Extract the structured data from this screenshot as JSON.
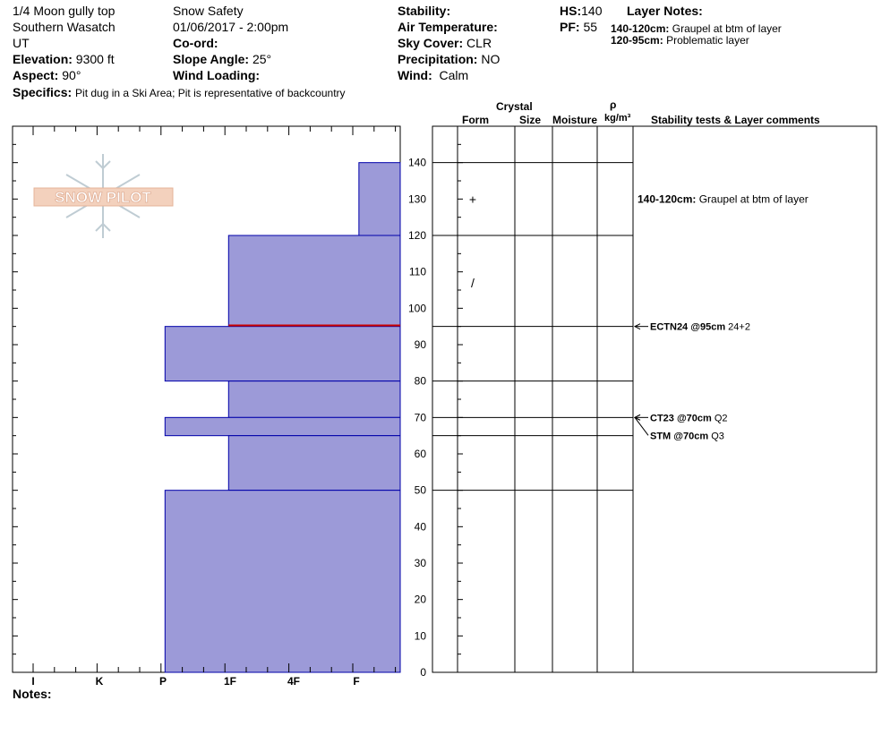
{
  "header": {
    "location": "1/4 Moon gully top",
    "range": "Southern Wasatch",
    "state": "UT",
    "elevation_label": "Elevation:",
    "elevation_value": "9300 ft",
    "aspect_label": "Aspect:",
    "aspect_value": "90°",
    "specifics_label": "Specifics:",
    "specifics_value": "Pit dug in a Ski Area; Pit is representative of backcountry",
    "observer": "Snow Safety",
    "datetime": "01/06/2017 - 2:00pm",
    "coord_label": "Co-ord:",
    "slope_label": "Slope Angle:",
    "slope_value": "25°",
    "wind_loading_label": "Wind Loading:",
    "stability_label": "Stability:",
    "air_temp_label": "Air Temperature:",
    "sky_label": "Sky Cover:",
    "sky_value": "CLR",
    "precip_label": "Precipitation:",
    "precip_value": "NO",
    "wind_label": "Wind:",
    "wind_value": "Calm",
    "hs_label": "HS:",
    "hs_value": "140",
    "pf_label": "PF:",
    "pf_value": "55",
    "layer_notes_label": "Layer Notes:",
    "layer_notes": [
      {
        "range": "140-120cm:",
        "text": "Graupel at btm of layer"
      },
      {
        "range": "120-95cm:",
        "text": "Problematic layer"
      }
    ]
  },
  "logo": {
    "text": "SNOW PILOT"
  },
  "columns": {
    "crystal": "Crystal",
    "form": "Form",
    "size": "Size",
    "moisture": "Moisture",
    "rho": "ρ",
    "density_unit": "kg/m³",
    "stability_comments": "Stability tests & Layer comments"
  },
  "notes_label": "Notes:",
  "chart_data": {
    "type": "bar",
    "orientation": "horizontal",
    "x_axis_labels": [
      "I",
      "K",
      "P",
      "1F",
      "4F",
      "F"
    ],
    "y_ticks": [
      "0",
      "10",
      "20",
      "30",
      "40",
      "50",
      "60",
      "70",
      "80",
      "90",
      "100",
      "110",
      "120",
      "130",
      "140"
    ],
    "ylim": [
      0,
      140
    ],
    "hardness_scale_note": "F=1, 4F=2, 1F=3, P=4, K=5, I=6",
    "layers": [
      {
        "bottom": 120,
        "top": 140,
        "hardness": 0.65
      },
      {
        "bottom": 95,
        "top": 120,
        "hardness": 2.7
      },
      {
        "bottom": 80,
        "top": 95,
        "hardness": 3.7
      },
      {
        "bottom": 70,
        "top": 80,
        "hardness": 2.7
      },
      {
        "bottom": 65,
        "top": 70,
        "hardness": 3.7
      },
      {
        "bottom": 50,
        "top": 65,
        "hardness": 2.7
      },
      {
        "bottom": 0,
        "top": 50,
        "hardness": 3.7
      }
    ],
    "layer_boundaries": [
      140,
      120,
      95,
      80,
      70,
      65,
      50
    ],
    "critical_interface": 95.3,
    "colors": {
      "fill": "#9c9ad8",
      "edge": "#0000aa",
      "critical": "#cc0000"
    },
    "crystal_forms": [
      {
        "height": 130,
        "symbol": "+"
      },
      {
        "height": 107,
        "symbol": "/"
      }
    ],
    "stability_tests": [
      {
        "height": 95,
        "label": "ECTN24 @95cm",
        "note": "24+2"
      },
      {
        "height": 70,
        "label": "CT23 @70cm",
        "note": "Q2"
      },
      {
        "height": 70,
        "label": "STM @70cm",
        "note": "Q3"
      }
    ],
    "layer_comment": {
      "height": 130,
      "range": "140-120cm:",
      "text": "Graupel at btm of layer"
    }
  }
}
